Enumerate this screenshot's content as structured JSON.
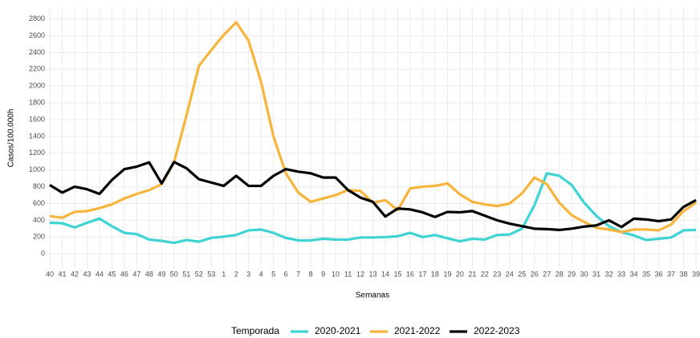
{
  "chart_data": {
    "type": "line",
    "y_label": "Casos/100.000h",
    "x_label": "Semanas",
    "legend_title": "Temporada",
    "categories": [
      "40",
      "41",
      "42",
      "43",
      "44",
      "45",
      "46",
      "47",
      "48",
      "49",
      "50",
      "51",
      "52",
      "53",
      "1",
      "2",
      "3",
      "4",
      "5",
      "6",
      "7",
      "8",
      "9",
      "10",
      "11",
      "12",
      "13",
      "14",
      "15",
      "16",
      "17",
      "18",
      "19",
      "20",
      "21",
      "22",
      "23",
      "24",
      "25",
      "26",
      "27",
      "28",
      "29",
      "30",
      "31",
      "32",
      "33",
      "34",
      "35",
      "36",
      "37",
      "38",
      "39"
    ],
    "series": [
      {
        "name": "2020-2021",
        "color": "#3fd3d3",
        "values": [
          370,
          365,
          315,
          370,
          420,
          330,
          250,
          235,
          170,
          155,
          130,
          165,
          145,
          190,
          205,
          225,
          280,
          290,
          250,
          190,
          160,
          160,
          180,
          170,
          170,
          195,
          195,
          200,
          210,
          250,
          200,
          225,
          185,
          150,
          180,
          170,
          225,
          230,
          300,
          580,
          960,
          930,
          820,
          610,
          450,
          330,
          260,
          220,
          165,
          180,
          195,
          280,
          285
        ]
      },
      {
        "name": "2021-2022",
        "color": "#f7b53d",
        "values": [
          450,
          430,
          500,
          510,
          545,
          590,
          660,
          715,
          760,
          830,
          1090,
          1650,
          2240,
          2430,
          2610,
          2760,
          2540,
          2050,
          1400,
          960,
          730,
          620,
          660,
          700,
          760,
          750,
          610,
          640,
          520,
          780,
          800,
          810,
          840,
          710,
          620,
          590,
          570,
          600,
          720,
          910,
          830,
          610,
          460,
          380,
          310,
          290,
          260,
          290,
          290,
          280,
          350,
          510,
          610
        ]
      },
      {
        "name": "2022-2023",
        "color": "#000000",
        "values": [
          820,
          730,
          800,
          770,
          715,
          880,
          1010,
          1040,
          1090,
          840,
          1095,
          1020,
          890,
          850,
          810,
          930,
          810,
          810,
          930,
          1010,
          980,
          960,
          910,
          910,
          760,
          670,
          620,
          445,
          540,
          530,
          495,
          440,
          500,
          495,
          510,
          455,
          400,
          360,
          330,
          300,
          295,
          285,
          300,
          325,
          340,
          400,
          320,
          420,
          410,
          390,
          410,
          560,
          640
        ]
      }
    ],
    "ylim": [
      -180,
      2930
    ],
    "yticks": [
      0,
      200,
      400,
      600,
      800,
      1000,
      1200,
      1400,
      1600,
      1800,
      2000,
      2200,
      2400,
      2600,
      2800
    ],
    "grid": true,
    "legend": "bottom"
  }
}
